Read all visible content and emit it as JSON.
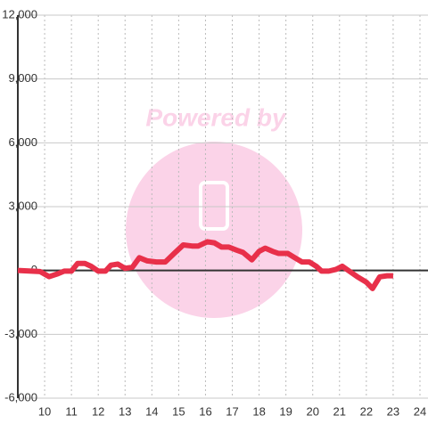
{
  "chart_data": {
    "type": "line",
    "watermark": "Powered by",
    "x": [
      9,
      9.5,
      9.83,
      10.17,
      10.5,
      10.73,
      11,
      11.23,
      11.5,
      11.73,
      12,
      12.27,
      12.47,
      12.73,
      13,
      13.27,
      13.53,
      13.83,
      14.17,
      14.5,
      14.83,
      15.17,
      15.5,
      15.73,
      16.07,
      16.33,
      16.6,
      16.87,
      17.17,
      17.4,
      17.73,
      18,
      18.23,
      18.5,
      18.73,
      19.07,
      19.33,
      19.6,
      19.87,
      20.13,
      20.33,
      20.6,
      20.87,
      21.1,
      21.33,
      21.67,
      22,
      22.23,
      22.5,
      22.77,
      23
    ],
    "series": [
      {
        "color": "#e8304a",
        "values": [
          0,
          -30,
          -50,
          -290,
          -150,
          -30,
          -30,
          330,
          330,
          200,
          -30,
          -30,
          250,
          300,
          100,
          150,
          600,
          450,
          400,
          400,
          800,
          1200,
          1150,
          1150,
          1350,
          1300,
          1100,
          1100,
          950,
          850,
          500,
          900,
          1050,
          900,
          800,
          800,
          600,
          400,
          400,
          200,
          -30,
          -30,
          50,
          200,
          0,
          -300,
          -550,
          -850,
          -300,
          -250,
          -250
        ]
      }
    ],
    "xlim": [
      9,
      24.3
    ],
    "ylim": [
      -6000,
      12000
    ],
    "xticks": [
      10,
      11,
      12,
      13,
      14,
      15,
      16,
      17,
      18,
      19,
      20,
      21,
      22,
      23,
      24
    ],
    "yticks": [
      {
        "value": -6000,
        "label": "-6,000"
      },
      {
        "value": -3000,
        "label": "-3,000"
      },
      0,
      {
        "value": 3000,
        "label": "3,000"
      },
      {
        "value": 6000,
        "label": "6,000"
      },
      {
        "value": 9000,
        "label": "9,000"
      },
      {
        "value": 12000,
        "label": "12,000"
      }
    ],
    "grid": true
  }
}
